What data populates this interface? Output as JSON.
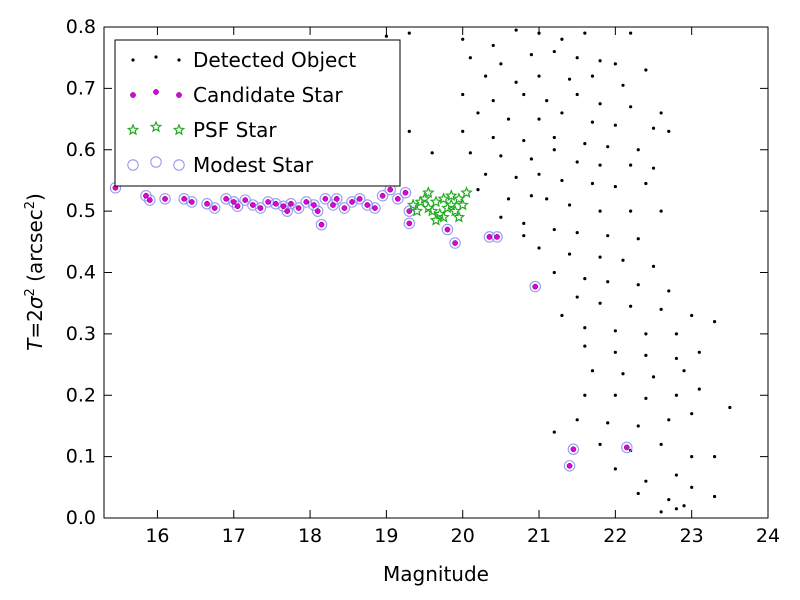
{
  "chart_data": {
    "type": "scatter",
    "title": "",
    "xlabel": "Magnitude",
    "ylabel": "T=2σ² (arcsec²)",
    "ylabel_parts": {
      "t": "T",
      "eq": "=2",
      "sigma": "σ",
      "sup1": "2",
      "open": " (arcsec",
      "sup2": "2",
      "close": ")"
    },
    "xlim": [
      15.3,
      24
    ],
    "ylim": [
      0,
      0.8
    ],
    "xticks": [
      16,
      17,
      18,
      19,
      20,
      21,
      22,
      23,
      24
    ],
    "yticks": [
      0.0,
      0.1,
      0.2,
      0.3,
      0.4,
      0.5,
      0.6,
      0.7,
      0.8
    ],
    "xtick_labels": [
      "16",
      "17",
      "18",
      "19",
      "20",
      "21",
      "22",
      "23",
      "24"
    ],
    "ytick_labels": [
      "0.0",
      "0.1",
      "0.2",
      "0.3",
      "0.4",
      "0.5",
      "0.6",
      "0.7",
      "0.8"
    ],
    "grid": false,
    "legend_position": "top-left",
    "series": [
      {
        "name": "Detected Object",
        "marker": "dot",
        "color": "#000000",
        "points": [
          [
            19.0,
            0.785
          ],
          [
            19.3,
            0.79
          ],
          [
            20.0,
            0.78
          ],
          [
            20.4,
            0.77
          ],
          [
            20.7,
            0.795
          ],
          [
            21.0,
            0.79
          ],
          [
            21.3,
            0.78
          ],
          [
            21.6,
            0.79
          ],
          [
            22.2,
            0.79
          ],
          [
            20.1,
            0.75
          ],
          [
            20.5,
            0.74
          ],
          [
            20.9,
            0.755
          ],
          [
            21.2,
            0.76
          ],
          [
            21.5,
            0.75
          ],
          [
            21.8,
            0.745
          ],
          [
            22.0,
            0.74
          ],
          [
            22.4,
            0.73
          ],
          [
            20.3,
            0.72
          ],
          [
            20.7,
            0.71
          ],
          [
            21.0,
            0.72
          ],
          [
            21.4,
            0.715
          ],
          [
            21.7,
            0.72
          ],
          [
            22.1,
            0.705
          ],
          [
            20.0,
            0.69
          ],
          [
            20.4,
            0.68
          ],
          [
            20.8,
            0.69
          ],
          [
            21.1,
            0.68
          ],
          [
            21.5,
            0.69
          ],
          [
            21.8,
            0.675
          ],
          [
            22.2,
            0.67
          ],
          [
            22.6,
            0.66
          ],
          [
            20.2,
            0.66
          ],
          [
            20.6,
            0.65
          ],
          [
            21.0,
            0.65
          ],
          [
            21.3,
            0.66
          ],
          [
            21.7,
            0.645
          ],
          [
            22.0,
            0.64
          ],
          [
            22.5,
            0.635
          ],
          [
            22.7,
            0.63
          ],
          [
            20.0,
            0.63
          ],
          [
            20.4,
            0.62
          ],
          [
            20.8,
            0.615
          ],
          [
            21.2,
            0.62
          ],
          [
            21.6,
            0.61
          ],
          [
            21.9,
            0.605
          ],
          [
            22.3,
            0.6
          ],
          [
            19.3,
            0.63
          ],
          [
            19.6,
            0.595
          ],
          [
            20.1,
            0.595
          ],
          [
            20.5,
            0.59
          ],
          [
            20.9,
            0.585
          ],
          [
            21.2,
            0.6
          ],
          [
            21.5,
            0.58
          ],
          [
            21.8,
            0.575
          ],
          [
            22.2,
            0.575
          ],
          [
            22.5,
            0.57
          ],
          [
            20.3,
            0.56
          ],
          [
            20.7,
            0.555
          ],
          [
            21.0,
            0.56
          ],
          [
            21.3,
            0.55
          ],
          [
            21.7,
            0.545
          ],
          [
            22.0,
            0.54
          ],
          [
            22.4,
            0.545
          ],
          [
            20.2,
            0.535
          ],
          [
            20.6,
            0.52
          ],
          [
            20.9,
            0.525
          ],
          [
            21.1,
            0.52
          ],
          [
            21.4,
            0.51
          ],
          [
            21.8,
            0.5
          ],
          [
            22.2,
            0.5
          ],
          [
            22.6,
            0.5
          ],
          [
            20.5,
            0.49
          ],
          [
            20.8,
            0.48
          ],
          [
            21.2,
            0.47
          ],
          [
            21.5,
            0.465
          ],
          [
            21.9,
            0.46
          ],
          [
            22.3,
            0.455
          ],
          [
            20.8,
            0.46
          ],
          [
            21.0,
            0.44
          ],
          [
            21.4,
            0.43
          ],
          [
            21.8,
            0.425
          ],
          [
            22.1,
            0.42
          ],
          [
            22.5,
            0.41
          ],
          [
            21.2,
            0.4
          ],
          [
            21.6,
            0.39
          ],
          [
            21.9,
            0.385
          ],
          [
            22.3,
            0.38
          ],
          [
            22.7,
            0.37
          ],
          [
            21.5,
            0.36
          ],
          [
            21.8,
            0.35
          ],
          [
            22.2,
            0.345
          ],
          [
            22.6,
            0.34
          ],
          [
            23.0,
            0.33
          ],
          [
            21.3,
            0.33
          ],
          [
            21.6,
            0.31
          ],
          [
            22.0,
            0.305
          ],
          [
            22.4,
            0.3
          ],
          [
            22.8,
            0.3
          ],
          [
            23.3,
            0.32
          ],
          [
            21.6,
            0.28
          ],
          [
            22.0,
            0.27
          ],
          [
            22.4,
            0.265
          ],
          [
            22.8,
            0.26
          ],
          [
            23.1,
            0.27
          ],
          [
            21.7,
            0.24
          ],
          [
            22.1,
            0.235
          ],
          [
            22.5,
            0.23
          ],
          [
            22.9,
            0.24
          ],
          [
            21.6,
            0.2
          ],
          [
            22.0,
            0.2
          ],
          [
            22.4,
            0.195
          ],
          [
            22.8,
            0.2
          ],
          [
            23.1,
            0.21
          ],
          [
            21.5,
            0.16
          ],
          [
            21.9,
            0.155
          ],
          [
            22.3,
            0.15
          ],
          [
            22.7,
            0.16
          ],
          [
            23.0,
            0.17
          ],
          [
            23.5,
            0.18
          ],
          [
            21.2,
            0.14
          ],
          [
            21.8,
            0.12
          ],
          [
            22.2,
            0.11
          ],
          [
            22.6,
            0.12
          ],
          [
            23.0,
            0.1
          ],
          [
            23.3,
            0.1
          ],
          [
            22.0,
            0.08
          ],
          [
            22.4,
            0.06
          ],
          [
            22.8,
            0.07
          ],
          [
            23.0,
            0.05
          ],
          [
            22.3,
            0.04
          ],
          [
            22.7,
            0.03
          ],
          [
            23.3,
            0.035
          ],
          [
            22.8,
            0.015
          ],
          [
            22.9,
            0.02
          ],
          [
            22.6,
            0.01
          ]
        ]
      },
      {
        "name": "Candidate Star",
        "marker": "circle-small",
        "color": "#e000e0",
        "points": [
          [
            15.45,
            0.538
          ],
          [
            15.85,
            0.525
          ],
          [
            15.9,
            0.518
          ],
          [
            16.1,
            0.52
          ],
          [
            16.35,
            0.52
          ],
          [
            16.45,
            0.515
          ],
          [
            16.65,
            0.512
          ],
          [
            16.75,
            0.505
          ],
          [
            16.9,
            0.52
          ],
          [
            17.0,
            0.515
          ],
          [
            17.05,
            0.508
          ],
          [
            17.15,
            0.518
          ],
          [
            17.25,
            0.51
          ],
          [
            17.35,
            0.505
          ],
          [
            17.45,
            0.515
          ],
          [
            17.55,
            0.512
          ],
          [
            17.65,
            0.508
          ],
          [
            17.7,
            0.5
          ],
          [
            17.75,
            0.512
          ],
          [
            17.85,
            0.505
          ],
          [
            17.95,
            0.515
          ],
          [
            18.05,
            0.51
          ],
          [
            18.1,
            0.5
          ],
          [
            18.2,
            0.52
          ],
          [
            18.3,
            0.51
          ],
          [
            18.35,
            0.52
          ],
          [
            18.45,
            0.505
          ],
          [
            18.55,
            0.515
          ],
          [
            18.65,
            0.52
          ],
          [
            18.75,
            0.51
          ],
          [
            18.85,
            0.505
          ],
          [
            18.95,
            0.525
          ],
          [
            19.05,
            0.535
          ],
          [
            19.15,
            0.52
          ],
          [
            19.25,
            0.53
          ],
          [
            19.3,
            0.5
          ],
          [
            18.15,
            0.478
          ],
          [
            19.3,
            0.48
          ],
          [
            19.8,
            0.47
          ],
          [
            19.9,
            0.448
          ],
          [
            20.35,
            0.458
          ],
          [
            20.45,
            0.458
          ],
          [
            20.95,
            0.377
          ],
          [
            21.45,
            0.112
          ],
          [
            21.4,
            0.085
          ],
          [
            22.15,
            0.115
          ]
        ]
      },
      {
        "name": "PSF Star",
        "marker": "star",
        "color": "#22aa22",
        "points": [
          [
            19.35,
            0.51
          ],
          [
            19.4,
            0.5
          ],
          [
            19.45,
            0.515
          ],
          [
            19.5,
            0.52
          ],
          [
            19.55,
            0.505
          ],
          [
            19.6,
            0.5
          ],
          [
            19.65,
            0.515
          ],
          [
            19.7,
            0.495
          ],
          [
            19.75,
            0.52
          ],
          [
            19.8,
            0.505
          ],
          [
            19.85,
            0.51
          ],
          [
            19.9,
            0.5
          ],
          [
            19.95,
            0.52
          ],
          [
            20.0,
            0.51
          ],
          [
            19.55,
            0.53
          ],
          [
            19.75,
            0.49
          ],
          [
            19.85,
            0.525
          ],
          [
            19.95,
            0.49
          ],
          [
            20.05,
            0.53
          ],
          [
            19.65,
            0.485
          ]
        ]
      },
      {
        "name": "Modest Star",
        "marker": "circle-open",
        "color": "#9999ee",
        "points": [
          [
            15.45,
            0.538
          ],
          [
            15.85,
            0.525
          ],
          [
            15.9,
            0.518
          ],
          [
            16.1,
            0.52
          ],
          [
            16.35,
            0.52
          ],
          [
            16.45,
            0.515
          ],
          [
            16.65,
            0.512
          ],
          [
            16.75,
            0.505
          ],
          [
            16.9,
            0.52
          ],
          [
            17.0,
            0.515
          ],
          [
            17.05,
            0.508
          ],
          [
            17.15,
            0.518
          ],
          [
            17.25,
            0.51
          ],
          [
            17.35,
            0.505
          ],
          [
            17.45,
            0.515
          ],
          [
            17.55,
            0.512
          ],
          [
            17.65,
            0.508
          ],
          [
            17.7,
            0.5
          ],
          [
            17.75,
            0.512
          ],
          [
            17.85,
            0.505
          ],
          [
            17.95,
            0.515
          ],
          [
            18.05,
            0.51
          ],
          [
            18.1,
            0.5
          ],
          [
            18.2,
            0.52
          ],
          [
            18.3,
            0.51
          ],
          [
            18.35,
            0.52
          ],
          [
            18.45,
            0.505
          ],
          [
            18.55,
            0.515
          ],
          [
            18.65,
            0.52
          ],
          [
            18.75,
            0.51
          ],
          [
            18.85,
            0.505
          ],
          [
            18.95,
            0.525
          ],
          [
            19.05,
            0.535
          ],
          [
            19.15,
            0.52
          ],
          [
            19.25,
            0.53
          ],
          [
            19.3,
            0.5
          ],
          [
            18.15,
            0.478
          ],
          [
            19.3,
            0.48
          ],
          [
            19.8,
            0.47
          ],
          [
            19.9,
            0.448
          ],
          [
            20.35,
            0.458
          ],
          [
            20.45,
            0.458
          ],
          [
            20.95,
            0.377
          ],
          [
            21.45,
            0.112
          ],
          [
            21.4,
            0.085
          ],
          [
            22.15,
            0.115
          ]
        ]
      }
    ]
  }
}
